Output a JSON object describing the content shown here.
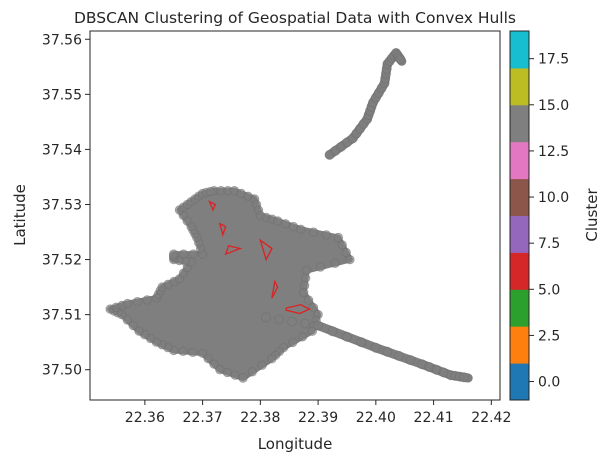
{
  "chart_data": {
    "type": "scatter",
    "title": "DBSCAN Clustering of Geospatial Data with Convex Hulls",
    "xlabel": "Longitude",
    "ylabel": "Latitude",
    "xlim": [
      22.3505,
      22.4215
    ],
    "ylim": [
      37.4945,
      37.5615
    ],
    "x_ticks": [
      22.36,
      22.37,
      22.38,
      22.39,
      22.4,
      22.41,
      22.42
    ],
    "x_tick_labels": [
      "22.36",
      "22.37",
      "22.38",
      "22.39",
      "22.40",
      "22.41",
      "22.42"
    ],
    "y_ticks": [
      37.5,
      37.51,
      37.52,
      37.53,
      37.54,
      37.55,
      37.56
    ],
    "y_tick_labels": [
      "37.50",
      "37.51",
      "37.52",
      "37.53",
      "37.54",
      "37.55",
      "37.56"
    ],
    "grid": false,
    "point_color": "#7f7f7f",
    "hull_color": "#d62728",
    "colorbar": {
      "label": "Cluster",
      "range": [
        -1,
        19
      ],
      "ticks": [
        0.0,
        2.5,
        5.0,
        7.5,
        10.0,
        12.5,
        15.0,
        17.5
      ],
      "tick_labels": [
        "0.0",
        "2.5",
        "5.0",
        "7.5",
        "10.0",
        "12.5",
        "15.0",
        "17.5"
      ],
      "colors": [
        "#1f77b4",
        "#ff7f0e",
        "#2ca02c",
        "#d62728",
        "#9467bd",
        "#8c564b",
        "#e377c2",
        "#7f7f7f",
        "#bcbd22",
        "#17becf"
      ]
    },
    "main_cluster_polygon": [
      [
        22.372,
        37.5325
      ],
      [
        22.3755,
        37.5325
      ],
      [
        22.379,
        37.531
      ],
      [
        22.38,
        37.528
      ],
      [
        22.383,
        37.527
      ],
      [
        22.387,
        37.5255
      ],
      [
        22.3935,
        37.524
      ],
      [
        22.3955,
        37.52
      ],
      [
        22.388,
        37.518
      ],
      [
        22.3875,
        37.514
      ],
      [
        22.39,
        37.51
      ],
      [
        22.389,
        37.507
      ],
      [
        22.384,
        37.504
      ],
      [
        22.382,
        37.502
      ],
      [
        22.377,
        37.4985
      ],
      [
        22.373,
        37.5
      ],
      [
        22.37,
        37.503
      ],
      [
        22.365,
        37.5035
      ],
      [
        22.362,
        37.505
      ],
      [
        22.359,
        37.507
      ],
      [
        22.356,
        37.51
      ],
      [
        22.354,
        37.511
      ],
      [
        22.357,
        37.512
      ],
      [
        22.362,
        37.513
      ],
      [
        22.363,
        37.515
      ],
      [
        22.366,
        37.5165
      ],
      [
        22.368,
        37.5195
      ],
      [
        22.365,
        37.52
      ],
      [
        22.365,
        37.521
      ],
      [
        22.37,
        37.521
      ],
      [
        22.369,
        37.524
      ],
      [
        22.368,
        37.526
      ],
      [
        22.366,
        37.529
      ],
      [
        22.368,
        37.5305
      ],
      [
        22.37,
        37.532
      ]
    ],
    "road_southeast": [
      [
        22.381,
        37.5095
      ],
      [
        22.39,
        37.508
      ],
      [
        22.4,
        37.504
      ],
      [
        22.408,
        37.501
      ],
      [
        22.413,
        37.499
      ],
      [
        22.416,
        37.4985
      ]
    ],
    "road_northeast": [
      [
        22.392,
        37.539
      ],
      [
        22.396,
        37.542
      ],
      [
        22.3985,
        37.5455
      ],
      [
        22.3995,
        37.5485
      ],
      [
        22.4015,
        37.552
      ],
      [
        22.402,
        37.5555
      ],
      [
        22.4035,
        37.5575
      ],
      [
        22.4045,
        37.556
      ]
    ],
    "hulls": [
      [
        [
          22.3845,
          37.5112
        ],
        [
          22.387,
          37.5118
        ],
        [
          22.3885,
          37.511
        ],
        [
          22.3868,
          37.5102
        ],
        [
          22.3845,
          37.5108
        ]
      ],
      [
        [
          22.3712,
          37.5305
        ],
        [
          22.3718,
          37.529
        ],
        [
          22.3722,
          37.53
        ]
      ],
      [
        [
          22.373,
          37.5265
        ],
        [
          22.3735,
          37.5245
        ],
        [
          22.374,
          37.526
        ]
      ],
      [
        [
          22.374,
          37.521
        ],
        [
          22.3765,
          37.522
        ],
        [
          22.3745,
          37.5225
        ]
      ],
      [
        [
          22.38,
          37.5235
        ],
        [
          22.381,
          37.52
        ],
        [
          22.382,
          37.522
        ]
      ],
      [
        [
          22.382,
          37.513
        ],
        [
          22.383,
          37.515
        ],
        [
          22.3825,
          37.516
        ]
      ]
    ]
  }
}
